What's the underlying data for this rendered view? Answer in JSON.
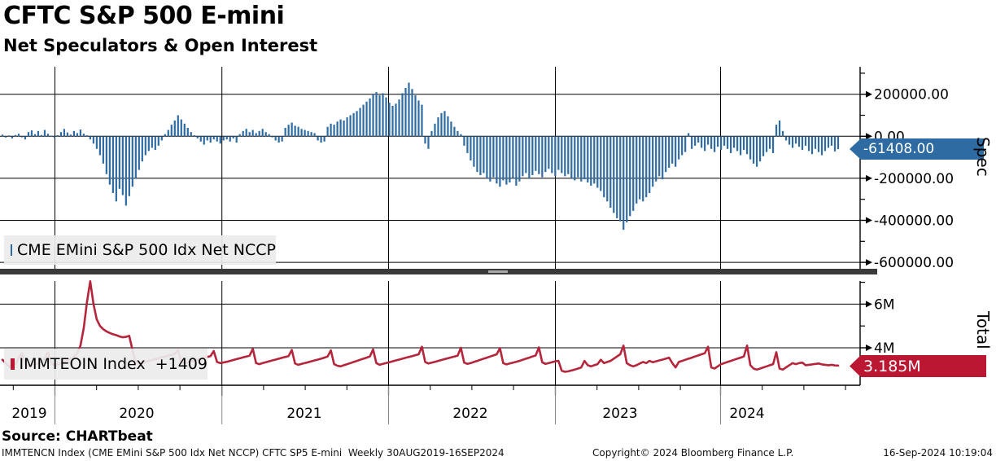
{
  "header": {
    "title": "CFTC S&P 500 E-mini",
    "subtitle": "Net Speculators & Open Interest"
  },
  "panels": {
    "spec": {
      "legend_label": "CME EMini S&P 500 Idx Net NCCP",
      "axis_title": "Spec",
      "last_value_label": "-61408.00",
      "flag_color": "#2e6ba2"
    },
    "total": {
      "legend_label": "IMMTEOIN Index  +1409",
      "axis_title": "Total",
      "last_value_label": "3.185M",
      "flag_color": "#bb1733"
    }
  },
  "footer": {
    "source": "Source: CHARTbeat",
    "left": "IMMTENCN Index (CME EMini S&P 500 Idx Net NCCP) CFTC SP5 E-mini  Weekly 30AUG2019-16SEP2024",
    "center": "Copyright© 2024 Bloomberg Finance L.P.",
    "right": "16-Sep-2024 10:19:04"
  },
  "chart_data": [
    {
      "type": "bar",
      "name": "CME EMini S&P 500 Idx Net NCCP",
      "color": "#2e6ba2",
      "x_period": "Weekly 30AUG2019-16SEP2024",
      "x_year_labels": [
        "2019",
        "2020",
        "2021",
        "2022",
        "2023",
        "2024"
      ],
      "ylim": [
        -650000,
        330000
      ],
      "grid": true,
      "legend_position": "bottom-left",
      "y_axis": {
        "major": [
          {
            "value": 200000,
            "label": "200000.00"
          },
          {
            "value": 0,
            "label": "0.00"
          },
          {
            "value": -200000,
            "label": "-200000.00"
          },
          {
            "value": -400000,
            "label": "-400000.00"
          },
          {
            "value": -600000,
            "label": "-600000.00"
          }
        ],
        "minor": [
          300000,
          100000,
          -100000,
          -300000,
          -500000
        ]
      },
      "last_value": -61408,
      "values": [
        8000,
        -6000,
        4000,
        -10000,
        6000,
        12000,
        -5000,
        -15000,
        20000,
        28000,
        10000,
        25000,
        6000,
        30000,
        12000,
        3000,
        -8000,
        5000,
        20000,
        35000,
        18000,
        8000,
        25000,
        15000,
        32000,
        12000,
        5000,
        -15000,
        -35000,
        -60000,
        -90000,
        -130000,
        -180000,
        -230000,
        -270000,
        -310000,
        -250000,
        -280000,
        -330000,
        -285000,
        -240000,
        -200000,
        -160000,
        -120000,
        -90000,
        -70000,
        -55000,
        -65000,
        -45000,
        -20000,
        10000,
        30000,
        55000,
        75000,
        100000,
        80000,
        60000,
        40000,
        20000,
        5000,
        -10000,
        -25000,
        -40000,
        -20000,
        -30000,
        -15000,
        -25000,
        -35000,
        -20000,
        -15000,
        -25000,
        -10000,
        -30000,
        10000,
        25000,
        35000,
        20000,
        30000,
        15000,
        25000,
        35000,
        20000,
        10000,
        -5000,
        -20000,
        -30000,
        -25000,
        40000,
        55000,
        65000,
        50000,
        45000,
        35000,
        30000,
        25000,
        20000,
        15000,
        -20000,
        -30000,
        -25000,
        45000,
        60000,
        55000,
        70000,
        80000,
        75000,
        90000,
        100000,
        110000,
        120000,
        135000,
        150000,
        165000,
        180000,
        200000,
        210000,
        195000,
        205000,
        185000,
        160000,
        145000,
        155000,
        175000,
        205000,
        230000,
        255000,
        225000,
        195000,
        170000,
        150000,
        -35000,
        -60000,
        25000,
        60000,
        90000,
        110000,
        120000,
        95000,
        70000,
        45000,
        25000,
        10000,
        -45000,
        -80000,
        -115000,
        -145000,
        -170000,
        -185000,
        -175000,
        -200000,
        -215000,
        -195000,
        -225000,
        -240000,
        -210000,
        -230000,
        -220000,
        -200000,
        -235000,
        -215000,
        -190000,
        -175000,
        -200000,
        -185000,
        -165000,
        -180000,
        -195000,
        -170000,
        -155000,
        -175000,
        -190000,
        -160000,
        -175000,
        -190000,
        -180000,
        -200000,
        -210000,
        -195000,
        -215000,
        -205000,
        -220000,
        -235000,
        -225000,
        -245000,
        -260000,
        -290000,
        -310000,
        -340000,
        -365000,
        -390000,
        -405000,
        -445000,
        -410000,
        -380000,
        -355000,
        -320000,
        -300000,
        -310000,
        -290000,
        -270000,
        -240000,
        -215000,
        -190000,
        -205000,
        -170000,
        -150000,
        -130000,
        -145000,
        -110000,
        -90000,
        -75000,
        15000,
        -60000,
        -45000,
        -30000,
        -55000,
        -70000,
        -40000,
        -60000,
        -75000,
        -50000,
        -65000,
        -45000,
        -60000,
        -80000,
        -55000,
        -70000,
        -90000,
        -65000,
        -85000,
        -110000,
        -130000,
        -145000,
        -120000,
        -95000,
        -75000,
        -60000,
        -80000,
        55000,
        75000,
        25000,
        -20000,
        -40000,
        -55000,
        -35000,
        -50000,
        -65000,
        -45000,
        -70000,
        -85000,
        -60000,
        -75000,
        -90000,
        -70000,
        -55000,
        -45000,
        -72000,
        -61408
      ]
    },
    {
      "type": "line",
      "name": "IMMTEOIN Index",
      "color": "#b5253b",
      "unit": "millions",
      "ylim_millions": [
        2.3,
        7.1
      ],
      "grid": true,
      "legend_position": "bottom-left",
      "y_axis": {
        "major": [
          {
            "value": 6,
            "label": "6M"
          },
          {
            "value": 4,
            "label": "4M"
          }
        ],
        "minor": [
          7,
          5,
          3
        ]
      },
      "last_value_millions": 3.185,
      "values_millions": [
        3.45,
        3.3,
        3.15,
        3.2,
        3.25,
        3.55,
        3.75,
        3.25,
        3.15,
        3.2,
        3.25,
        3.3,
        3.35,
        3.5,
        3.8,
        3.3,
        3.2,
        3.25,
        3.3,
        3.35,
        3.42,
        3.5,
        3.6,
        3.75,
        4.1,
        4.9,
        6.1,
        7.05,
        6.0,
        5.3,
        5.0,
        4.85,
        4.75,
        4.68,
        4.62,
        4.58,
        4.52,
        4.48,
        4.5,
        4.55,
        3.9,
        3.3,
        3.28,
        3.32,
        3.36,
        3.4,
        3.44,
        3.48,
        3.52,
        3.56,
        3.6,
        3.64,
        3.68,
        3.72,
        3.9,
        3.35,
        3.3,
        3.34,
        3.38,
        3.42,
        3.46,
        3.5,
        3.54,
        3.58,
        3.62,
        3.85,
        3.35,
        3.3,
        3.33,
        3.36,
        3.4,
        3.44,
        3.48,
        3.52,
        3.56,
        3.6,
        3.64,
        3.95,
        3.3,
        3.25,
        3.3,
        3.34,
        3.38,
        3.42,
        3.46,
        3.5,
        3.54,
        3.58,
        3.62,
        3.9,
        3.28,
        3.22,
        3.26,
        3.3,
        3.34,
        3.38,
        3.42,
        3.46,
        3.5,
        3.55,
        3.6,
        3.88,
        3.25,
        3.18,
        3.15,
        3.2,
        3.25,
        3.3,
        3.35,
        3.4,
        3.45,
        3.5,
        3.55,
        3.6,
        3.92,
        3.3,
        3.22,
        3.26,
        3.3,
        3.34,
        3.38,
        3.42,
        3.46,
        3.5,
        3.54,
        3.58,
        3.62,
        3.66,
        3.7,
        4.05,
        3.35,
        3.28,
        3.32,
        3.36,
        3.4,
        3.44,
        3.48,
        3.52,
        3.56,
        3.6,
        3.64,
        4.0,
        3.32,
        3.26,
        3.3,
        3.35,
        3.4,
        3.45,
        3.5,
        3.55,
        3.6,
        3.65,
        3.7,
        3.98,
        3.3,
        3.24,
        3.28,
        3.32,
        3.36,
        3.4,
        3.45,
        3.5,
        3.55,
        3.6,
        3.65,
        4.02,
        3.34,
        3.26,
        3.3,
        3.34,
        3.38,
        3.4,
        2.95,
        2.9,
        2.92,
        2.96,
        3.0,
        3.05,
        3.1,
        3.4,
        3.2,
        3.15,
        3.2,
        3.25,
        3.45,
        3.3,
        3.35,
        3.4,
        3.5,
        3.6,
        3.7,
        4.1,
        3.3,
        3.2,
        3.15,
        3.2,
        3.28,
        3.35,
        3.3,
        3.4,
        3.34,
        3.38,
        3.42,
        3.46,
        3.5,
        3.55,
        3.3,
        3.1,
        3.35,
        3.4,
        3.45,
        3.5,
        3.55,
        3.6,
        3.65,
        3.7,
        3.75,
        4.05,
        3.1,
        3.05,
        3.15,
        3.25,
        3.3,
        3.35,
        3.4,
        3.45,
        3.5,
        3.55,
        3.6,
        4.1,
        3.2,
        3.05,
        3.0,
        3.05,
        3.1,
        3.15,
        3.2,
        3.25,
        3.8,
        3.05,
        3.0,
        3.1,
        3.2,
        3.3,
        3.25,
        3.3,
        3.32,
        3.2,
        3.22,
        3.24,
        3.26,
        3.28,
        3.24,
        3.22,
        3.2,
        3.22,
        3.19,
        3.185
      ]
    }
  ]
}
